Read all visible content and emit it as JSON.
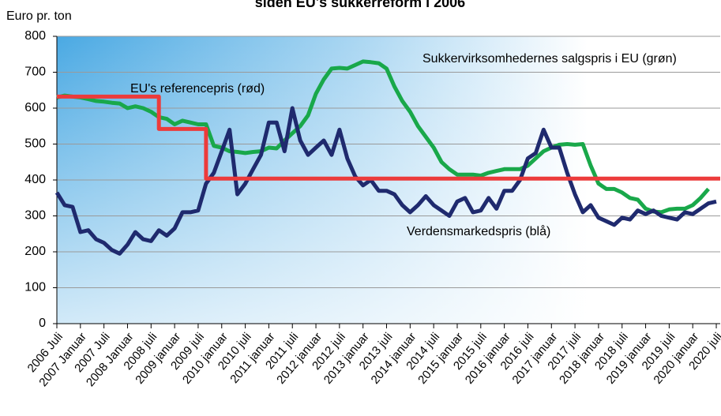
{
  "chart_data": {
    "type": "line",
    "title": "siden EU's sukkerreform i 2006",
    "ylabel": "Euro pr. ton",
    "annotations": [
      "Sukkervirksomhedernes salgspris i EU (grøn)",
      "EU's referencepris (rød)",
      "Verdensmarkedspris (blå)"
    ],
    "ylim": [
      0,
      800
    ],
    "yticks": [
      0,
      100,
      200,
      300,
      400,
      500,
      600,
      700,
      800
    ],
    "grid": true,
    "xlim": [
      "2006-07",
      "2020-08"
    ],
    "xticks": [
      {
        "value": "2006-07",
        "label": "2006 Juli"
      },
      {
        "value": "2007-01",
        "label": "2007 Januar"
      },
      {
        "value": "2007-07",
        "label": "2007 Juli"
      },
      {
        "value": "2008-01",
        "label": "2008 Januar"
      },
      {
        "value": "2008-07",
        "label": "2008 juli"
      },
      {
        "value": "2009-01",
        "label": "2009 januar"
      },
      {
        "value": "2009-07",
        "label": "2009 juli"
      },
      {
        "value": "2010-01",
        "label": "2010 januar"
      },
      {
        "value": "2010-07",
        "label": "2010 juli"
      },
      {
        "value": "2011-01",
        "label": "2011 januar"
      },
      {
        "value": "2011-07",
        "label": "2011 juli"
      },
      {
        "value": "2012-01",
        "label": "2012 januar"
      },
      {
        "value": "2012-07",
        "label": "2012 juli"
      },
      {
        "value": "2013-01",
        "label": "2013 januar"
      },
      {
        "value": "2013-07",
        "label": "2013 juli"
      },
      {
        "value": "2014-01",
        "label": "2014 januar"
      },
      {
        "value": "2014-07",
        "label": "2014 juli"
      },
      {
        "value": "2015-01",
        "label": "2015 januar"
      },
      {
        "value": "2015-07",
        "label": "2015 juli"
      },
      {
        "value": "2016-01",
        "label": "2016 januar"
      },
      {
        "value": "2016-07",
        "label": "2016 juli"
      },
      {
        "value": "2017-01",
        "label": "2017 januar"
      },
      {
        "value": "2017-07",
        "label": "2017 juli"
      },
      {
        "value": "2018-01",
        "label": "2018 januar"
      },
      {
        "value": "2018-07",
        "label": "2018 juli"
      },
      {
        "value": "2019-01",
        "label": "2019 januar"
      },
      {
        "value": "2019-07",
        "label": "2019 juli"
      },
      {
        "value": "2020-01",
        "label": "2020 januar"
      },
      {
        "value": "2020-07",
        "label": "2020 juli"
      }
    ],
    "x": [
      "2006-07",
      "2006-09",
      "2006-11",
      "2007-01",
      "2007-03",
      "2007-05",
      "2007-07",
      "2007-09",
      "2007-11",
      "2008-01",
      "2008-03",
      "2008-05",
      "2008-07",
      "2008-09",
      "2008-11",
      "2009-01",
      "2009-03",
      "2009-05",
      "2009-07",
      "2009-09",
      "2009-11",
      "2010-01",
      "2010-03",
      "2010-05",
      "2010-07",
      "2010-09",
      "2010-11",
      "2011-01",
      "2011-03",
      "2011-05",
      "2011-07",
      "2011-09",
      "2011-11",
      "2012-01",
      "2012-03",
      "2012-05",
      "2012-07",
      "2012-09",
      "2012-11",
      "2013-01",
      "2013-03",
      "2013-05",
      "2013-07",
      "2013-09",
      "2013-11",
      "2014-01",
      "2014-03",
      "2014-05",
      "2014-07",
      "2014-09",
      "2014-11",
      "2015-01",
      "2015-03",
      "2015-05",
      "2015-07",
      "2015-09",
      "2015-11",
      "2016-01",
      "2016-03",
      "2016-05",
      "2016-07",
      "2016-09",
      "2016-11",
      "2017-01",
      "2017-03",
      "2017-05",
      "2017-07",
      "2017-09",
      "2017-11",
      "2018-01",
      "2018-03",
      "2018-05",
      "2018-07",
      "2018-09",
      "2018-11",
      "2019-01",
      "2019-03",
      "2019-05",
      "2019-07",
      "2019-09",
      "2019-11",
      "2020-01",
      "2020-03",
      "2020-05",
      "2020-07"
    ],
    "series": [
      {
        "color": "#1f2a6e",
        "values": [
          365,
          330,
          325,
          255,
          260,
          235,
          225,
          205,
          195,
          220,
          255,
          235,
          230,
          260,
          245,
          265,
          310,
          310,
          315,
          390,
          420,
          480,
          540,
          360,
          390,
          430,
          470,
          560,
          560,
          480,
          600,
          510,
          470,
          490,
          510,
          470,
          540,
          460,
          410,
          385,
          400,
          370,
          370,
          360,
          330,
          310,
          330,
          355,
          330,
          315,
          300,
          340,
          350,
          310,
          315,
          350,
          320,
          370,
          370,
          400,
          460,
          475,
          540,
          490,
          490,
          420,
          360,
          310,
          330,
          295,
          285,
          275,
          295,
          290,
          315,
          305,
          315,
          300,
          295,
          290,
          310,
          305,
          320,
          335,
          340
        ]
      },
      {
        "color": "#19a84a",
        "values": [
          630,
          635,
          632,
          630,
          625,
          620,
          618,
          615,
          613,
          600,
          605,
          600,
          590,
          575,
          570,
          555,
          565,
          560,
          555,
          555,
          495,
          490,
          480,
          478,
          475,
          478,
          480,
          490,
          488,
          510,
          530,
          550,
          580,
          640,
          680,
          710,
          712,
          710,
          720,
          730,
          728,
          725,
          710,
          660,
          620,
          590,
          550,
          520,
          490,
          450,
          430,
          415,
          415,
          415,
          412,
          420,
          425,
          430,
          430,
          430,
          440,
          460,
          480,
          490,
          498,
          500,
          498,
          500,
          440,
          390,
          375,
          375,
          365,
          350,
          345,
          320,
          312,
          310,
          318,
          320,
          320,
          330,
          350,
          375,
          null
        ]
      },
      {
        "color": "#ec3b3b",
        "x": [
          "2006-07",
          "2008-09",
          "2008-09",
          "2009-09",
          "2009-09",
          "2020-08"
        ],
        "values": [
          632,
          632,
          542,
          542,
          404,
          404
        ]
      }
    ]
  }
}
